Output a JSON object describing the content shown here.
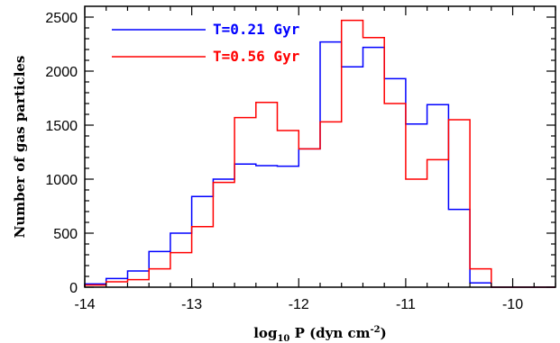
{
  "chart_data": {
    "type": "line",
    "style": "step histogram",
    "xlabel": "log10 P (dyn cm^-2)",
    "ylabel": "Number of gas particles",
    "xlim": [
      -14,
      -9.6
    ],
    "ylim": [
      0,
      2600
    ],
    "x_ticks": [
      -14,
      -13,
      -12,
      -11,
      -10
    ],
    "y_ticks": [
      0,
      500,
      1000,
      1500,
      2000,
      2500
    ],
    "x_tick_labels": [
      "-14",
      "-13",
      "-12",
      "-11",
      "-10"
    ],
    "y_tick_labels": [
      "0",
      "500",
      "1000",
      "1500",
      "2000",
      "2500"
    ],
    "bin_edges": [
      -14.0,
      -13.8,
      -13.6,
      -13.4,
      -13.2,
      -13.0,
      -12.8,
      -12.6,
      -12.4,
      -12.2,
      -12.0,
      -11.8,
      -11.6,
      -11.4,
      -11.2,
      -11.0,
      -10.8,
      -10.6,
      -10.4,
      -10.2,
      -10.0,
      -9.8,
      -9.6
    ],
    "series": [
      {
        "name": "T=0.21 Gyr",
        "color": "#0000ff",
        "values": [
          30,
          80,
          150,
          330,
          500,
          840,
          1000,
          1140,
          1125,
          1120,
          1280,
          2270,
          2040,
          2220,
          1930,
          1510,
          1690,
          720,
          40,
          0,
          0,
          0
        ]
      },
      {
        "name": "T=0.56 Gyr",
        "color": "#ff0000",
        "values": [
          20,
          50,
          70,
          170,
          320,
          560,
          970,
          1570,
          1710,
          1450,
          1280,
          1530,
          2470,
          2310,
          1700,
          1000,
          1180,
          1550,
          170,
          0,
          0,
          0
        ]
      }
    ],
    "legend_position": "top-left",
    "grid": false
  },
  "legend": {
    "items": [
      {
        "label": "T=0.21 Gyr",
        "color": "#0000ff"
      },
      {
        "label": "T=0.56 Gyr",
        "color": "#ff0000"
      }
    ]
  },
  "axis_titles": {
    "x_main": "log",
    "x_sub": "10",
    "x_mid": " P (dyn cm",
    "x_sup": "-2",
    "x_end": ")",
    "y": "Number of gas particles"
  }
}
